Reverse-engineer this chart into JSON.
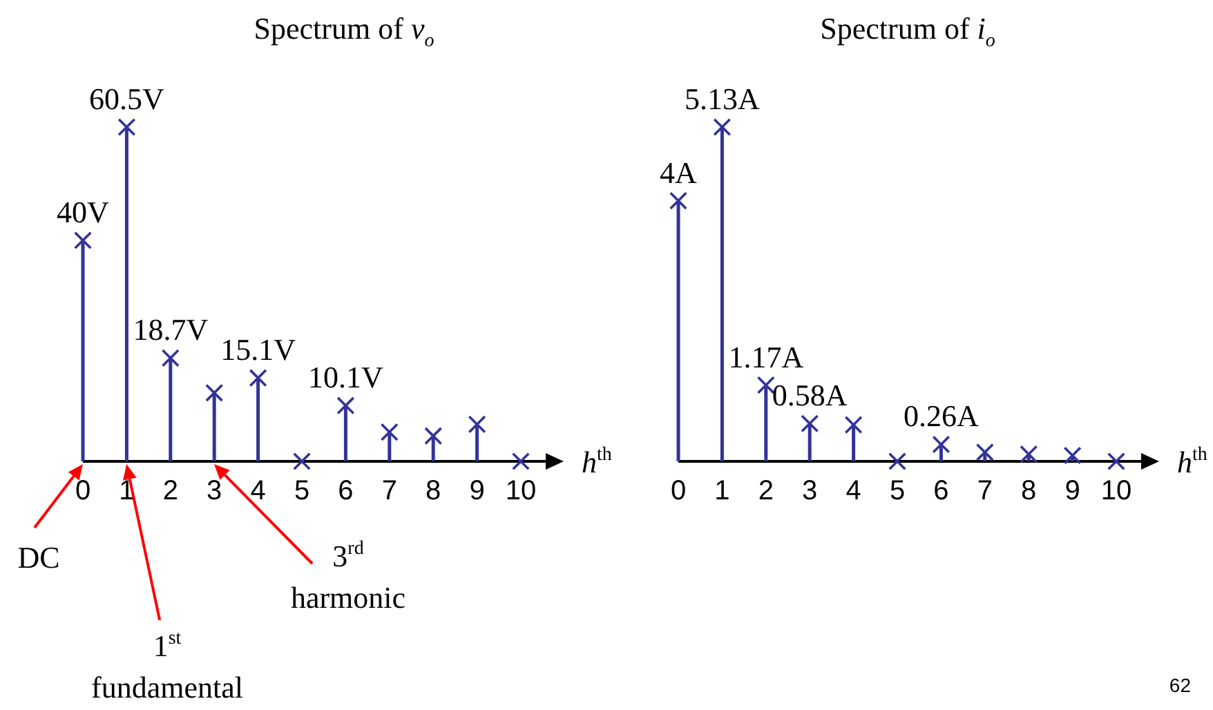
{
  "chart_data": [
    {
      "type": "lollipop",
      "title": "Spectrum of v$_{o}$",
      "xlabel": "h$^{th}$",
      "categories": [
        "0",
        "1",
        "2",
        "3",
        "4",
        "5",
        "6",
        "7",
        "8",
        "9",
        "10"
      ],
      "values": [
        40,
        60.5,
        18.7,
        12.4,
        15.1,
        0,
        10.1,
        5.3,
        4.6,
        6.7,
        0
      ],
      "value_labels": [
        "40V",
        "60.5V",
        "18.7V",
        null,
        "15.1V",
        null,
        "10.1V",
        null,
        null,
        null,
        null
      ],
      "color": "#333399",
      "marker": "cross",
      "annotations": [
        "DC",
        "1$^{st}$\nfundamental",
        "3$^{rd}$\nharmonic"
      ]
    },
    {
      "type": "lollipop",
      "title": "Spectrum of i$_{o}$",
      "xlabel": "h$^{th}$",
      "categories": [
        "0",
        "1",
        "2",
        "3",
        "4",
        "5",
        "6",
        "7",
        "8",
        "9",
        "10"
      ],
      "values": [
        4,
        5.13,
        1.17,
        0.58,
        0.56,
        0,
        0.26,
        0.14,
        0.11,
        0.09,
        0
      ],
      "value_labels": [
        "4A",
        "5.13A",
        "1.17A",
        "0.58A",
        null,
        null,
        "0.26A",
        null,
        null,
        null,
        null
      ],
      "color": "#333399",
      "marker": "cross",
      "annotations": [
        "62"
      ]
    }
  ]
}
